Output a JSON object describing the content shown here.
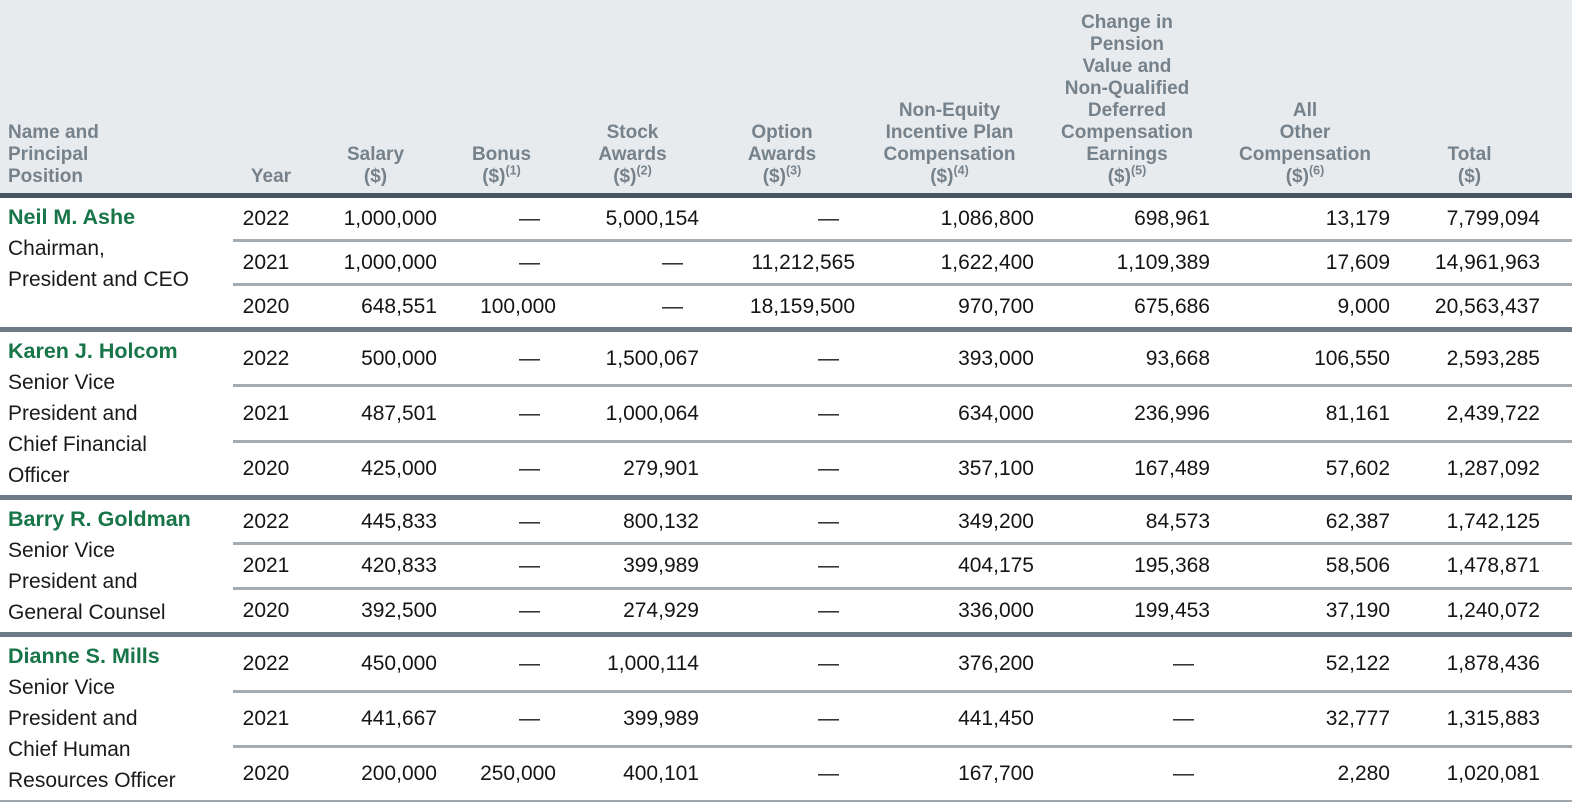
{
  "document": {
    "kind": "summary-compensation-table",
    "colors": {
      "header_background": "#e8ebed",
      "header_text": "#76828b",
      "header_rule": "#48545f",
      "block_rule": "#6e7b86",
      "row_rule": "#a4abb1",
      "name_accent_green": "#177548",
      "body_text": "#151515"
    }
  },
  "table": {
    "columns": [
      {
        "lines": "Name and\nPrincipal\nPosition",
        "dollar": "",
        "footnote": ""
      },
      {
        "lines": "Year",
        "dollar": "",
        "footnote": ""
      },
      {
        "lines": "Salary",
        "dollar": "($)",
        "footnote": ""
      },
      {
        "lines": "Bonus",
        "dollar": "($)",
        "footnote": "(1)"
      },
      {
        "lines": "Stock\nAwards",
        "dollar": "($)",
        "footnote": "(2)"
      },
      {
        "lines": "Option\nAwards",
        "dollar": "($)",
        "footnote": "(3)"
      },
      {
        "lines": "Non-Equity\nIncentive Plan\nCompensation",
        "dollar": "($)",
        "footnote": "(4)"
      },
      {
        "lines": "Change in\nPension\nValue and\nNon-Qualified\nDeferred\nCompensation\nEarnings",
        "dollar": "($)",
        "footnote": "(5)"
      },
      {
        "lines": "All\nOther\nCompensation",
        "dollar": "($)",
        "footnote": "(6)"
      },
      {
        "lines": "Total",
        "dollar": "($)",
        "footnote": ""
      }
    ],
    "executives": [
      {
        "name": "Neil M. Ashe",
        "title": "Chairman,\nPresident and CEO",
        "rows": [
          [
            "2022",
            "1,000,000",
            "—",
            "5,000,154",
            "—",
            "1,086,800",
            "698,961",
            "13,179",
            "7,799,094"
          ],
          [
            "2021",
            "1,000,000",
            "—",
            "—",
            "11,212,565",
            "1,622,400",
            "1,109,389",
            "17,609",
            "14,961,963"
          ],
          [
            "2020",
            "648,551",
            "100,000",
            "—",
            "18,159,500",
            "970,700",
            "675,686",
            "9,000",
            "20,563,437"
          ]
        ]
      },
      {
        "name": "Karen J. Holcom",
        "title": "Senior Vice\nPresident and\nChief Financial\nOfficer",
        "rows": [
          [
            "2022",
            "500,000",
            "—",
            "1,500,067",
            "—",
            "393,000",
            "93,668",
            "106,550",
            "2,593,285"
          ],
          [
            "2021",
            "487,501",
            "—",
            "1,000,064",
            "—",
            "634,000",
            "236,996",
            "81,161",
            "2,439,722"
          ],
          [
            "2020",
            "425,000",
            "—",
            "279,901",
            "—",
            "357,100",
            "167,489",
            "57,602",
            "1,287,092"
          ]
        ]
      },
      {
        "name": "Barry R. Goldman",
        "title": "Senior Vice\nPresident and\nGeneral Counsel",
        "rows": [
          [
            "2022",
            "445,833",
            "—",
            "800,132",
            "—",
            "349,200",
            "84,573",
            "62,387",
            "1,742,125"
          ],
          [
            "2021",
            "420,833",
            "—",
            "399,989",
            "—",
            "404,175",
            "195,368",
            "58,506",
            "1,478,871"
          ],
          [
            "2020",
            "392,500",
            "—",
            "274,929",
            "—",
            "336,000",
            "199,453",
            "37,190",
            "1,240,072"
          ]
        ]
      },
      {
        "name": "Dianne S. Mills",
        "title": "Senior Vice\nPresident and\nChief Human\nResources Officer",
        "rows": [
          [
            "2022",
            "450,000",
            "—",
            "1,000,114",
            "—",
            "376,200",
            "—",
            "52,122",
            "1,878,436"
          ],
          [
            "2021",
            "441,667",
            "—",
            "399,989",
            "—",
            "441,450",
            "—",
            "32,777",
            "1,315,883"
          ],
          [
            "2020",
            "200,000",
            "250,000",
            "400,101",
            "—",
            "167,700",
            "—",
            "2,280",
            "1,020,081"
          ]
        ]
      }
    ]
  }
}
